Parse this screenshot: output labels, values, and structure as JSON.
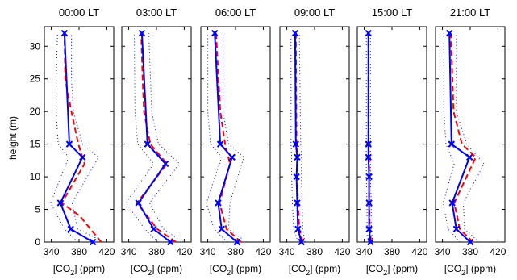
{
  "figure": {
    "ylabel": "height (m)",
    "xlabel_prefix": "[CO",
    "xlabel_sub": "2",
    "xlabel_suffix": "] (ppm)"
  },
  "colors": {
    "measured": "#0000ff",
    "model": "#ff0000",
    "bounds": "#0000ff",
    "axes": "#000000"
  },
  "chart_data": [
    {
      "type": "line",
      "title": "00:00 LT",
      "xlim": [
        330,
        430
      ],
      "ylim": [
        0,
        33
      ],
      "xticks": [
        340,
        380,
        420
      ],
      "yticks": [
        0,
        5,
        10,
        15,
        20,
        25,
        30
      ],
      "series": [
        {
          "role": "measured",
          "style": "solid-x-markers",
          "points": [
            [
              400,
              0
            ],
            [
              368,
              2
            ],
            [
              353,
              6
            ],
            [
              385,
              13
            ],
            [
              366,
              15
            ],
            [
              359,
              32
            ]
          ]
        },
        {
          "role": "model",
          "style": "dashed",
          "points": [
            [
              412,
              0
            ],
            [
              381,
              4
            ],
            [
              355,
              6
            ],
            [
              388,
              12
            ],
            [
              379,
              15
            ],
            [
              369,
              20
            ],
            [
              360,
              25
            ],
            [
              359,
              32
            ]
          ]
        },
        {
          "role": "upper",
          "style": "dotted",
          "points": [
            [
              416,
              0
            ],
            [
              378,
              2
            ],
            [
              370,
              6
            ],
            [
              408,
              13
            ],
            [
              385,
              15
            ],
            [
              372,
              20
            ],
            [
              369,
              25
            ],
            [
              369,
              32
            ]
          ]
        },
        {
          "role": "lower",
          "style": "dotted",
          "points": [
            [
              378,
              0
            ],
            [
              359,
              2
            ],
            [
              339,
              6
            ],
            [
              365,
              13
            ],
            [
              350,
              15
            ],
            [
              347,
              20
            ],
            [
              347,
              25
            ],
            [
              349,
              32
            ]
          ]
        }
      ]
    },
    {
      "type": "line",
      "title": "03:00 LT",
      "xlim": [
        330,
        430
      ],
      "ylim": [
        0,
        33
      ],
      "xticks": [
        340,
        380,
        420
      ],
      "yticks": [
        0,
        5,
        10,
        15,
        20,
        25,
        30
      ],
      "series": [
        {
          "role": "measured",
          "style": "solid-x-markers",
          "points": [
            [
              400,
              0
            ],
            [
              376,
              2
            ],
            [
              354,
              6
            ],
            [
              393,
              12
            ],
            [
              367,
              15
            ],
            [
              359,
              32
            ]
          ]
        },
        {
          "role": "model",
          "style": "dashed",
          "points": [
            [
              408,
              0
            ],
            [
              381,
              2
            ],
            [
              352,
              6
            ],
            [
              395,
              12
            ],
            [
              371,
              15
            ],
            [
              362,
              20
            ],
            [
              360,
              25
            ],
            [
              358,
              32
            ]
          ]
        },
        {
          "role": "upper",
          "style": "dotted",
          "points": [
            [
              418,
              0
            ],
            [
              390,
              2
            ],
            [
              370,
              6
            ],
            [
              413,
              12
            ],
            [
              383,
              15
            ],
            [
              373,
              20
            ],
            [
              369,
              32
            ]
          ]
        },
        {
          "role": "lower",
          "style": "dotted",
          "points": [
            [
              382,
              0
            ],
            [
              363,
              2
            ],
            [
              336,
              6
            ],
            [
              376,
              12
            ],
            [
              353,
              15
            ],
            [
              349,
              20
            ],
            [
              348,
              32
            ]
          ]
        }
      ]
    },
    {
      "type": "line",
      "title": "06:00 LT",
      "xlim": [
        330,
        430
      ],
      "ylim": [
        0,
        33
      ],
      "xticks": [
        340,
        380,
        420
      ],
      "yticks": [
        0,
        5,
        10,
        15,
        20,
        25,
        30
      ],
      "series": [
        {
          "role": "measured",
          "style": "solid-x-markers",
          "points": [
            [
              382,
              0
            ],
            [
              360,
              2
            ],
            [
              355,
              6
            ],
            [
              375,
              13
            ],
            [
              358,
              15
            ],
            [
              350,
              32
            ]
          ]
        },
        {
          "role": "model",
          "style": "dashed",
          "points": [
            [
              388,
              0
            ],
            [
              367,
              2
            ],
            [
              357,
              6
            ],
            [
              372,
              12
            ],
            [
              365,
              15
            ],
            [
              358,
              20
            ],
            [
              352,
              32
            ]
          ]
        },
        {
          "role": "upper",
          "style": "dotted",
          "points": [
            [
              396,
              0
            ],
            [
              370,
              2
            ],
            [
              372,
              6
            ],
            [
              392,
              13
            ],
            [
              370,
              15
            ],
            [
              362,
              20
            ],
            [
              362,
              32
            ]
          ]
        },
        {
          "role": "lower",
          "style": "dotted",
          "points": [
            [
              368,
              0
            ],
            [
              349,
              2
            ],
            [
              338,
              6
            ],
            [
              360,
              13
            ],
            [
              344,
              15
            ],
            [
              340,
              20
            ],
            [
              340,
              32
            ]
          ]
        }
      ]
    },
    {
      "type": "line",
      "title": "09:00 LT",
      "xlim": [
        330,
        430
      ],
      "ylim": [
        0,
        33
      ],
      "xticks": [
        340,
        380,
        420
      ],
      "yticks": [
        0,
        5,
        10,
        15,
        20,
        25,
        30
      ],
      "series": [
        {
          "role": "measured",
          "style": "solid-x-markers",
          "points": [
            [
              361,
              0
            ],
            [
              356,
              2
            ],
            [
              355,
              6
            ],
            [
              354,
              10
            ],
            [
              355,
              13
            ],
            [
              353,
              15
            ],
            [
              352,
              32
            ]
          ]
        },
        {
          "role": "model",
          "style": "dashed",
          "points": [
            [
              363,
              0
            ],
            [
              358,
              2
            ],
            [
              356,
              6
            ],
            [
              355,
              10
            ],
            [
              355,
              13
            ],
            [
              354,
              15
            ],
            [
              353,
              32
            ]
          ]
        },
        {
          "role": "upper",
          "style": "dotted",
          "points": [
            [
              366,
              0
            ],
            [
              363,
              2
            ],
            [
              362,
              6
            ],
            [
              361,
              10
            ],
            [
              361,
              13
            ],
            [
              360,
              15
            ],
            [
              358,
              32
            ]
          ]
        },
        {
          "role": "lower",
          "style": "dotted",
          "points": [
            [
              356,
              0
            ],
            [
              350,
              2
            ],
            [
              348,
              6
            ],
            [
              347,
              10
            ],
            [
              347,
              13
            ],
            [
              346,
              15
            ],
            [
              346,
              32
            ]
          ]
        }
      ]
    },
    {
      "type": "line",
      "title": "15:00 LT",
      "xlim": [
        330,
        430
      ],
      "ylim": [
        0,
        33
      ],
      "xticks": [
        340,
        380,
        420
      ],
      "yticks": [
        0,
        5,
        10,
        15,
        20,
        25,
        30
      ],
      "series": [
        {
          "role": "measured",
          "style": "solid-x-markers",
          "points": [
            [
              349,
              0
            ],
            [
              347,
              2
            ],
            [
              347,
              6
            ],
            [
              347,
              10
            ],
            [
              346,
              13
            ],
            [
              346,
              15
            ],
            [
              346,
              32
            ]
          ]
        },
        {
          "role": "model",
          "style": "dashed",
          "points": [
            [
              350,
              0
            ],
            [
              348,
              2
            ],
            [
              347,
              6
            ],
            [
              347,
              10
            ],
            [
              347,
              13
            ],
            [
              346,
              15
            ],
            [
              346,
              32
            ]
          ]
        },
        {
          "role": "upper",
          "style": "dotted",
          "points": [
            [
              352,
              0
            ],
            [
              350,
              2
            ],
            [
              350,
              6
            ],
            [
              349,
              10
            ],
            [
              349,
              15
            ],
            [
              349,
              32
            ]
          ]
        },
        {
          "role": "lower",
          "style": "dotted",
          "points": [
            [
              346,
              0
            ],
            [
              344,
              2
            ],
            [
              344,
              6
            ],
            [
              343,
              10
            ],
            [
              343,
              15
            ],
            [
              343,
              32
            ]
          ]
        }
      ]
    },
    {
      "type": "line",
      "title": "21:00 LT",
      "xlim": [
        330,
        430
      ],
      "ylim": [
        0,
        33
      ],
      "xticks": [
        340,
        380,
        420
      ],
      "yticks": [
        0,
        5,
        10,
        15,
        20,
        25,
        30
      ],
      "series": [
        {
          "role": "measured",
          "style": "solid-x-markers",
          "points": [
            [
              380,
              0
            ],
            [
              360,
              2
            ],
            [
              354,
              6
            ],
            [
              379,
              13
            ],
            [
              353,
              15
            ],
            [
              350,
              32
            ]
          ]
        },
        {
          "role": "model",
          "style": "dashed",
          "points": [
            [
              384,
              0
            ],
            [
              365,
              2
            ],
            [
              357,
              6
            ],
            [
              388,
              13
            ],
            [
              368,
              15
            ],
            [
              356,
              20
            ],
            [
              352,
              32
            ]
          ]
        },
        {
          "role": "upper",
          "style": "dotted",
          "points": [
            [
              393,
              0
            ],
            [
              372,
              2
            ],
            [
              370,
              6
            ],
            [
              400,
              12
            ],
            [
              375,
              15
            ],
            [
              360,
              20
            ],
            [
              360,
              32
            ]
          ]
        },
        {
          "role": "lower",
          "style": "dotted",
          "points": [
            [
              365,
              0
            ],
            [
              348,
              2
            ],
            [
              341,
              6
            ],
            [
              357,
              12
            ],
            [
              345,
              15
            ],
            [
              342,
              20
            ],
            [
              342,
              32
            ]
          ]
        }
      ]
    }
  ]
}
